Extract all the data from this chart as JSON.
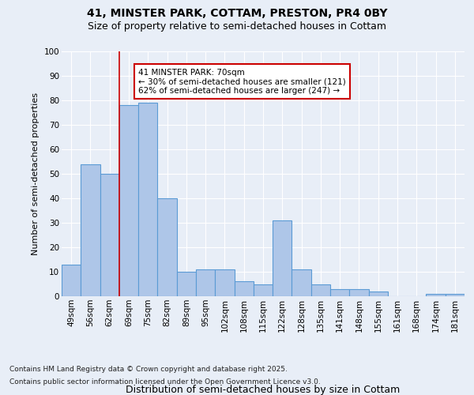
{
  "title1": "41, MINSTER PARK, COTTAM, PRESTON, PR4 0BY",
  "title2": "Size of property relative to semi-detached houses in Cottam",
  "categories": [
    "49sqm",
    "56sqm",
    "62sqm",
    "69sqm",
    "75sqm",
    "82sqm",
    "89sqm",
    "95sqm",
    "102sqm",
    "108sqm",
    "115sqm",
    "122sqm",
    "128sqm",
    "135sqm",
    "141sqm",
    "148sqm",
    "155sqm",
    "161sqm",
    "168sqm",
    "174sqm",
    "181sqm"
  ],
  "values": [
    13,
    54,
    50,
    78,
    79,
    40,
    10,
    11,
    11,
    6,
    5,
    31,
    11,
    5,
    3,
    3,
    2,
    0,
    0,
    1,
    1
  ],
  "bar_color": "#aec6e8",
  "bar_edge_color": "#5b9bd5",
  "bar_linewidth": 0.8,
  "property_bar_index": 3,
  "red_line_color": "#cc0000",
  "annotation_text": "41 MINSTER PARK: 70sqm\n← 30% of semi-detached houses are smaller (121)\n62% of semi-detached houses are larger (247) →",
  "annotation_box_color": "#ffffff",
  "annotation_box_edge": "#cc0000",
  "xlabel": "Distribution of semi-detached houses by size in Cottam",
  "ylabel": "Number of semi-detached properties",
  "ylim": [
    0,
    100
  ],
  "yticks": [
    0,
    10,
    20,
    30,
    40,
    50,
    60,
    70,
    80,
    90,
    100
  ],
  "background_color": "#e8eef7",
  "plot_bg_color": "#e8eef7",
  "grid_color": "#ffffff",
  "footer_line1": "Contains HM Land Registry data © Crown copyright and database right 2025.",
  "footer_line2": "Contains public sector information licensed under the Open Government Licence v3.0.",
  "title1_fontsize": 10,
  "title2_fontsize": 9,
  "xlabel_fontsize": 9,
  "ylabel_fontsize": 8,
  "tick_fontsize": 7.5,
  "annotation_fontsize": 7.5,
  "footer_fontsize": 6.5
}
